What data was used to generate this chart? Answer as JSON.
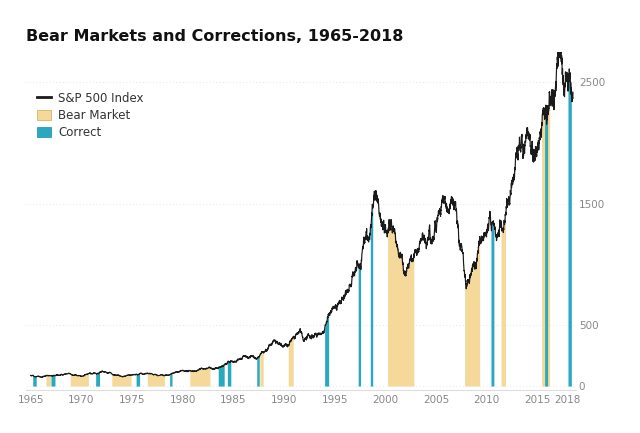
{
  "title": "Bear Markets and Corrections, 1965-2018",
  "title_fontsize": 11.5,
  "background_color": "#ffffff",
  "line_color": "#1a1a1a",
  "bear_color": "#F5D99A",
  "correction_color": "#29A8C0",
  "yticks": [
    0,
    500,
    1500,
    2500
  ],
  "xlim": [
    1964.5,
    2018.8
  ],
  "ylim": [
    -30,
    2750
  ],
  "legend_items": [
    "S&P 500 Index",
    "Bear Market",
    "Correct"
  ],
  "bear_periods": [
    [
      1966.5,
      1966.95
    ],
    [
      1968.9,
      1970.7
    ],
    [
      1973.0,
      1974.9
    ],
    [
      1976.5,
      1978.2
    ],
    [
      1980.7,
      1982.7
    ],
    [
      1987.6,
      1987.95
    ],
    [
      1990.4,
      1990.9
    ],
    [
      2000.2,
      2002.8
    ],
    [
      2007.8,
      2009.3
    ],
    [
      2011.4,
      2011.85
    ],
    [
      2015.4,
      2016.2
    ]
  ],
  "correction_periods": [
    [
      1965.2,
      1965.55
    ],
    [
      1967.0,
      1967.4
    ],
    [
      1971.4,
      1971.8
    ],
    [
      1975.4,
      1975.75
    ],
    [
      1978.7,
      1978.95
    ],
    [
      1983.5,
      1984.1
    ],
    [
      1984.4,
      1984.75
    ],
    [
      1987.3,
      1987.55
    ],
    [
      1994.0,
      1994.4
    ],
    [
      1997.3,
      1997.55
    ],
    [
      1998.5,
      1998.75
    ],
    [
      2010.4,
      2010.7
    ],
    [
      2015.7,
      2016.0
    ],
    [
      2018.0,
      2018.35
    ]
  ],
  "key_years": [
    1965,
    1966,
    1967,
    1968,
    1969,
    1970,
    1971,
    1972,
    1973,
    1974,
    1975,
    1976,
    1977,
    1978,
    1979,
    1980,
    1981,
    1982,
    1983,
    1984,
    1985,
    1986,
    1987,
    1988,
    1989,
    1990,
    1991,
    1992,
    1993,
    1994,
    1995,
    1996,
    1997,
    1998,
    1999,
    2000,
    2001,
    2002,
    2003,
    2004,
    2005,
    2006,
    2007,
    2008,
    2009,
    2010,
    2011,
    2012,
    2013,
    2014,
    2015,
    2016,
    2017,
    2018,
    2018.5
  ],
  "key_values": [
    88,
    80,
    97,
    103,
    92,
    83,
    102,
    118,
    97,
    68,
    90,
    107,
    95,
    96,
    107,
    136,
    122,
    141,
    166,
    167,
    211,
    242,
    247,
    276,
    353,
    330,
    417,
    435,
    466,
    459,
    615,
    741,
    970,
    1229,
    1469,
    1320,
    1148,
    880,
    1112,
    1212,
    1248,
    1418,
    1468,
    903,
    1115,
    1258,
    1257,
    1426,
    1848,
    2059,
    2044,
    2239,
    2674,
    2580,
    2600
  ],
  "xticks": [
    1965,
    1970,
    1975,
    1980,
    1985,
    1990,
    1995,
    2000,
    2005,
    2010,
    2015,
    2018
  ],
  "grid_color": "#dddddd",
  "tick_color": "#888888"
}
